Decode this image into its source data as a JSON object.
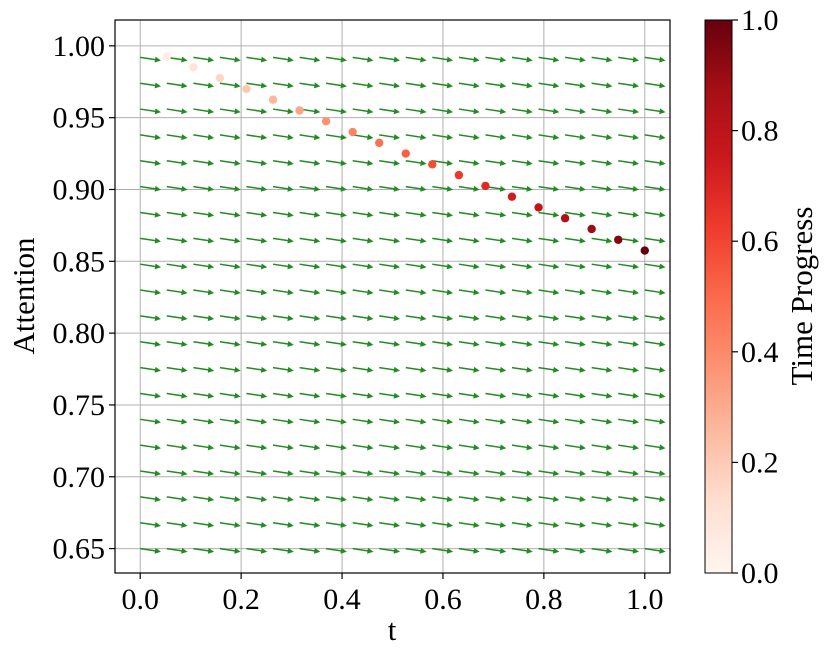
{
  "chart_data": {
    "type": "scatter",
    "title": "",
    "xlabel": "t",
    "ylabel": "Attention",
    "xlim": [
      -0.05,
      1.05
    ],
    "ylim": [
      0.633,
      1.018
    ],
    "x_ticks": [
      "0.0",
      "0.2",
      "0.4",
      "0.6",
      "0.8",
      "1.0"
    ],
    "x_tick_values": [
      0.0,
      0.2,
      0.4,
      0.6,
      0.8,
      1.0
    ],
    "y_ticks": [
      "0.65",
      "0.70",
      "0.75",
      "0.80",
      "0.85",
      "0.90",
      "0.95",
      "1.00"
    ],
    "y_tick_values": [
      0.65,
      0.7,
      0.75,
      0.8,
      0.85,
      0.9,
      0.95,
      1.0
    ],
    "grid": true,
    "colormap": "Reds",
    "colorbar": {
      "label": "Time Progress",
      "min": 0.0,
      "max": 1.0,
      "ticks": [
        "0.0",
        "0.2",
        "0.4",
        "0.6",
        "0.8",
        "1.0"
      ],
      "tick_values": [
        0.0,
        0.2,
        0.4,
        0.6,
        0.8,
        1.0
      ]
    },
    "points": {
      "x": [
        0.0526,
        0.1053,
        0.1579,
        0.2105,
        0.2632,
        0.3158,
        0.3684,
        0.4211,
        0.4737,
        0.5263,
        0.5789,
        0.6316,
        0.6842,
        0.7368,
        0.7895,
        0.8421,
        0.8947,
        0.9474,
        1.0
      ],
      "y": [
        0.9925,
        0.985,
        0.9775,
        0.97,
        0.9625,
        0.955,
        0.9475,
        0.94,
        0.9325,
        0.925,
        0.9175,
        0.91,
        0.9025,
        0.895,
        0.8875,
        0.88,
        0.8725,
        0.865,
        0.8575
      ],
      "color_value": [
        0.0526,
        0.1053,
        0.1579,
        0.2105,
        0.2632,
        0.3158,
        0.3684,
        0.4211,
        0.4737,
        0.5263,
        0.5789,
        0.6316,
        0.6842,
        0.7368,
        0.7895,
        0.8421,
        0.8947,
        0.9474,
        1.0
      ]
    },
    "vector_field": {
      "color": "#228b22",
      "x_grid": [
        0.0,
        0.0526,
        0.1053,
        0.1579,
        0.2105,
        0.2632,
        0.3158,
        0.3684,
        0.4211,
        0.4737,
        0.5263,
        0.5789,
        0.6316,
        0.6842,
        0.7368,
        0.7895,
        0.8421,
        0.8947,
        0.9474,
        1.0
      ],
      "y_grid": [
        0.65,
        0.668,
        0.686,
        0.704,
        0.722,
        0.74,
        0.758,
        0.776,
        0.794,
        0.812,
        0.83,
        0.848,
        0.866,
        0.884,
        0.902,
        0.92,
        0.938,
        0.956,
        0.974,
        0.992
      ],
      "direction": [
        1,
        -0.15
      ]
    }
  }
}
